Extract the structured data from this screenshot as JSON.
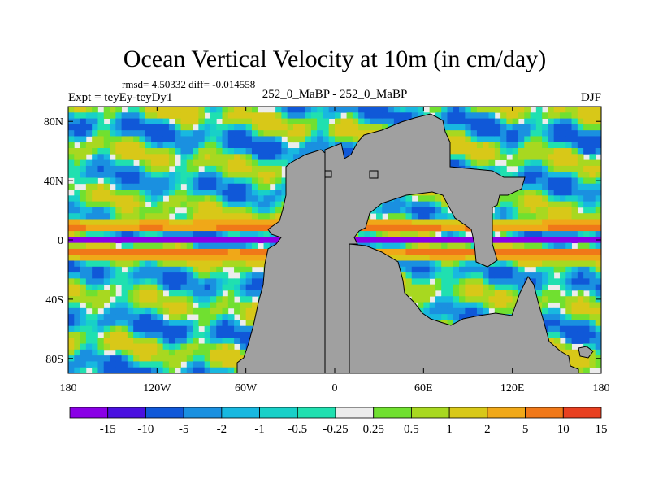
{
  "chart_data": {
    "type": "heatmap",
    "title": "Ocean Vertical Velocity at 10m (in cm/day)",
    "stats": "rmsd= 4.50332 diff= -0.014558",
    "experiment_label": "Expt = teyEy-teyDy1",
    "comparison_label": "252_0_MaBP - 252_0_MaBP",
    "season_label": "DJF",
    "x_axis": {
      "range": [
        -180,
        180
      ],
      "ticks": [
        {
          "value": -180,
          "label": "180"
        },
        {
          "value": -120,
          "label": "120W"
        },
        {
          "value": -60,
          "label": "60W"
        },
        {
          "value": 0,
          "label": "0"
        },
        {
          "value": 60,
          "label": "60E"
        },
        {
          "value": 120,
          "label": "120E"
        },
        {
          "value": 180,
          "label": "180"
        }
      ]
    },
    "y_axis": {
      "range": [
        -90,
        90
      ],
      "ticks": [
        {
          "value": 80,
          "label": "80N"
        },
        {
          "value": 40,
          "label": "40N"
        },
        {
          "value": 0,
          "label": "0"
        },
        {
          "value": -40,
          "label": "40S"
        },
        {
          "value": -80,
          "label": "80S"
        }
      ]
    },
    "colorbar": {
      "labels": [
        "-15",
        "-10",
        "-5",
        "-2",
        "-1",
        "-0.5",
        "-0.25",
        "0.25",
        "0.5",
        "1",
        "2",
        "5",
        "10",
        "15"
      ],
      "colors": [
        "#8a00e6",
        "#4a10e0",
        "#1058d8",
        "#1a90e0",
        "#18b8e0",
        "#18d0c8",
        "#20e0b0",
        "#ececec",
        "#70e030",
        "#a8d820",
        "#d8c818",
        "#f0a818",
        "#f07818",
        "#e84020"
      ]
    },
    "land_color": "#a0a0a0",
    "features": [
      {
        "name": "equatorial upwelling band",
        "lon_range": [
          -180,
          -45
        ],
        "lat_center": 0,
        "sign": "negative",
        "peak": -15
      },
      {
        "name": "equatorial upwelling band",
        "lon_range": [
          20,
          100
        ],
        "lat_center": 0,
        "sign": "negative",
        "peak": -15
      },
      {
        "name": "equatorial upwelling band",
        "lon_range": [
          125,
          180
        ],
        "lat_center": 0,
        "sign": "negative",
        "peak": -15
      },
      {
        "name": "off-equatorial downwelling",
        "lat_center": 7,
        "sign": "positive",
        "peak": 10
      },
      {
        "name": "off-equatorial downwelling",
        "lat_center": -7,
        "sign": "positive",
        "peak": 10
      }
    ]
  }
}
